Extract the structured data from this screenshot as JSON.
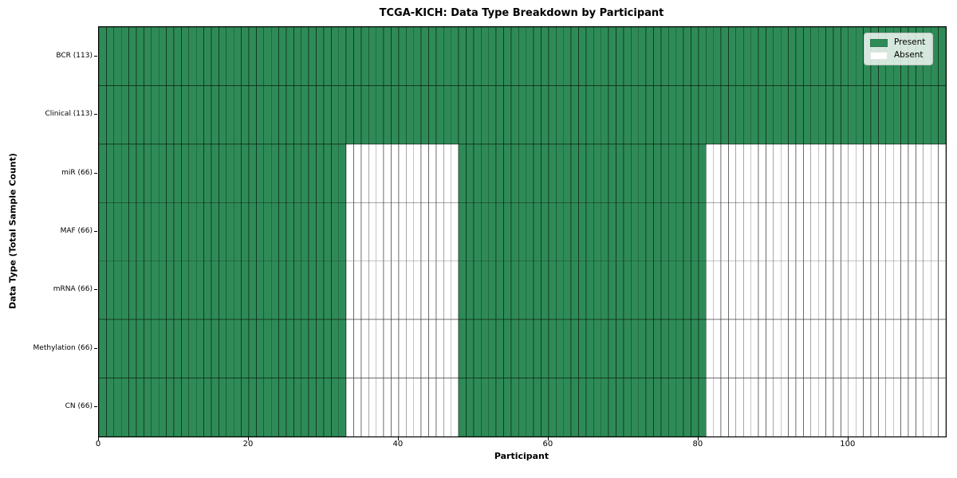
{
  "chart_data": {
    "type": "heatmap",
    "title": "TCGA-KICH: Data Type Breakdown by Participant",
    "xlabel": "Participant",
    "ylabel": "Data Type (Total Sample Count)",
    "x_ticks": [
      0,
      20,
      40,
      60,
      80,
      100
    ],
    "x_range": [
      0,
      113
    ],
    "n_participants": 113,
    "grid": "cell-borders",
    "legend_position": "upper-right",
    "colors": {
      "present": "#2e8b57",
      "absent": "#ffffff",
      "cell_edge": "#000000",
      "cell_edge_opacity": 0.45,
      "frame": "#000000"
    },
    "legend": [
      {
        "label": "Present",
        "color": "#2e8b57"
      },
      {
        "label": "Absent",
        "color": "#ffffff"
      }
    ],
    "rows": [
      {
        "label": "BCR (113)",
        "present_count": 113,
        "present_ranges": [
          [
            0,
            113
          ]
        ]
      },
      {
        "label": "Clinical (113)",
        "present_count": 113,
        "present_ranges": [
          [
            0,
            113
          ]
        ]
      },
      {
        "label": "miR (66)",
        "present_count": 66,
        "present_ranges": [
          [
            0,
            33
          ],
          [
            48,
            81
          ]
        ]
      },
      {
        "label": "MAF (66)",
        "present_count": 66,
        "present_ranges": [
          [
            0,
            33
          ],
          [
            48,
            81
          ]
        ]
      },
      {
        "label": "mRNA (66)",
        "present_count": 66,
        "present_ranges": [
          [
            0,
            33
          ],
          [
            48,
            81
          ]
        ]
      },
      {
        "label": "Methylation (66)",
        "present_count": 66,
        "present_ranges": [
          [
            0,
            33
          ],
          [
            48,
            81
          ]
        ]
      },
      {
        "label": "CN (66)",
        "present_count": 66,
        "present_ranges": [
          [
            0,
            33
          ],
          [
            48,
            81
          ]
        ]
      }
    ]
  }
}
